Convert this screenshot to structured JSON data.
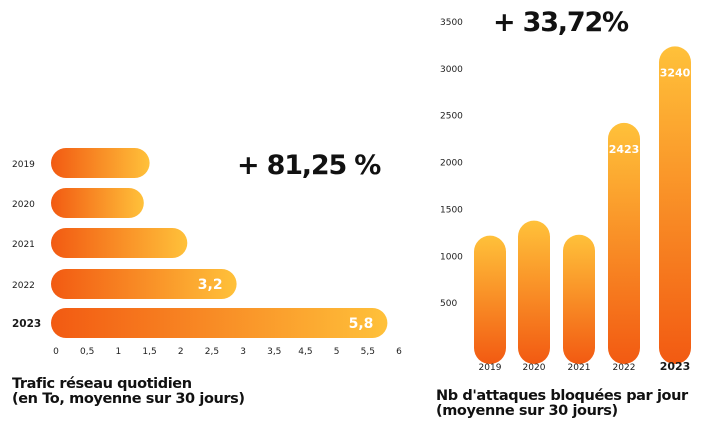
{
  "chart_data": [
    {
      "type": "bar",
      "orientation": "horizontal",
      "categories": [
        "2019",
        "2020",
        "2021",
        "2022",
        "2023"
      ],
      "values": [
        1.7,
        1.6,
        2.35,
        3.2,
        5.8
      ],
      "data_labels": [
        "",
        "",
        "",
        "3,2",
        "5,8"
      ],
      "xticks": [
        "0",
        "0,5",
        "1",
        "1,5",
        "2",
        "2,5",
        "3",
        "3,5",
        "4,5",
        "5",
        "5,5",
        "6"
      ],
      "xlim": [
        0,
        6
      ],
      "highlight": "+ 81,25 %",
      "caption": [
        "Trafic réseau quotidien",
        "(en To, moyenne sur 30 jours)"
      ],
      "grid": false,
      "colors": {
        "gradient_start": "#f25a12",
        "gradient_end": "#ffc13a"
      }
    },
    {
      "type": "bar",
      "orientation": "vertical",
      "categories": [
        "2019",
        "2020",
        "2021",
        "2022",
        "2023"
      ],
      "values": [
        1220,
        1380,
        1230,
        2423,
        3240
      ],
      "data_labels": [
        "",
        "",
        "",
        "2423",
        "3240"
      ],
      "yticks": [
        "500",
        "1000",
        "1500",
        "2000",
        "2500",
        "3000",
        "3500"
      ],
      "ylim": [
        0,
        3500
      ],
      "highlight": "+ 33,72%",
      "caption": [
        "Nb d'attaques bloquées par jour",
        "(moyenne sur 30 jours)"
      ],
      "grid": false,
      "colors": {
        "gradient_start": "#f25a12",
        "gradient_end": "#ffc13a"
      }
    }
  ]
}
